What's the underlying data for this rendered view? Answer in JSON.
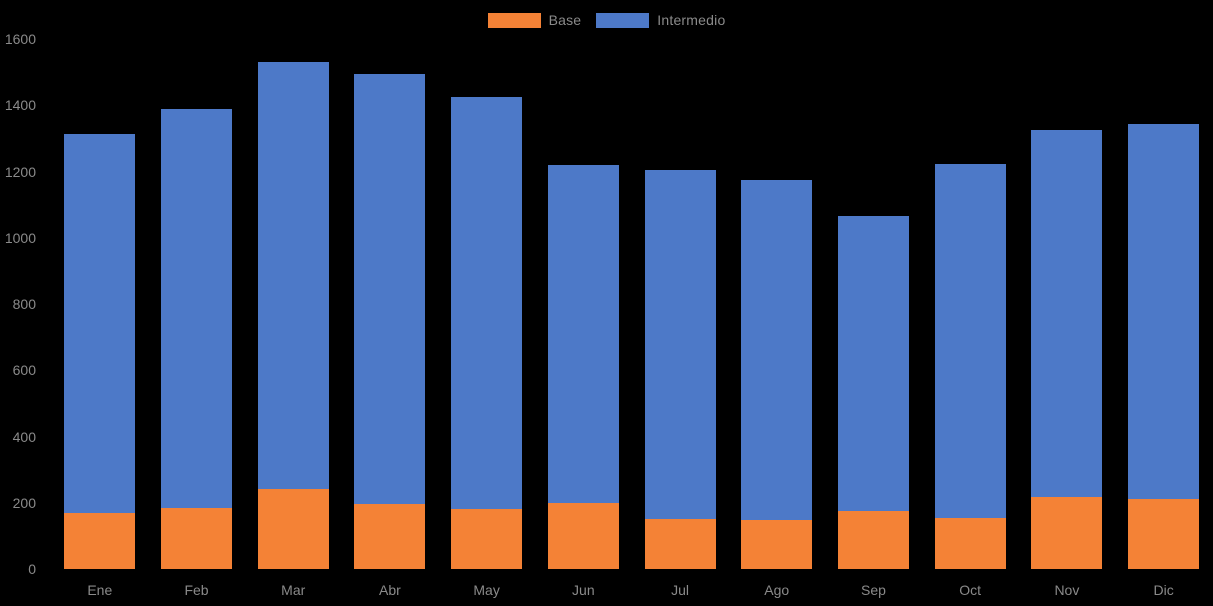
{
  "chart_data": {
    "type": "bar",
    "stacked": true,
    "title": "",
    "xlabel": "",
    "ylabel": "",
    "categories": [
      "Ene",
      "Feb",
      "Mar",
      "Abr",
      "May",
      "Jun",
      "Jul",
      "Ago",
      "Sep",
      "Oct",
      "Nov",
      "Dic"
    ],
    "series": [
      {
        "name": "Base",
        "color": "#F48236",
        "values": [
          168,
          185,
          242,
          195,
          180,
          198,
          151,
          148,
          175,
          153,
          216,
          212
        ]
      },
      {
        "name": "Intermedio",
        "color": "#4D79C8",
        "values": [
          1145,
          1205,
          1290,
          1300,
          1245,
          1022,
          1055,
          1025,
          890,
          1070,
          1110,
          1130
        ]
      }
    ],
    "stack_totals": [
      1313,
      1390,
      1532,
      1495,
      1425,
      1220,
      1206,
      1173,
      1065,
      1223,
      1326,
      1342
    ],
    "ylim": [
      0,
      1600
    ],
    "yticks": [
      0,
      200,
      400,
      600,
      800,
      1000,
      1200,
      1400,
      1600
    ],
    "grid": false,
    "legend_position": "top-center",
    "background_color": "#000000",
    "text_color": "#8a8a8a"
  }
}
